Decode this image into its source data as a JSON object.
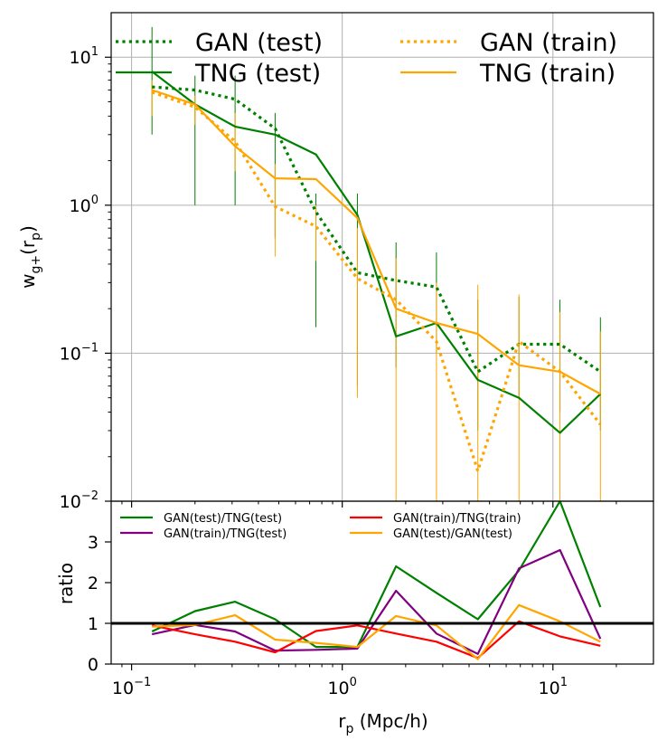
{
  "chart_data": [
    {
      "type": "line",
      "panel": "main",
      "ylabel_main": "w",
      "ylabel_sub": "g+",
      "ylabel_paren": "(r",
      "ylabel_p": "p",
      "ylabel_close": ")",
      "xscale": "log",
      "yscale": "log",
      "xlim": [
        0.08,
        30
      ],
      "ylim": [
        0.01,
        20
      ],
      "grid": true,
      "legend_position": "top, two columns",
      "yticks": [
        {
          "value": 0.01,
          "base": "10",
          "exp": "−2"
        },
        {
          "value": 0.1,
          "base": "10",
          "exp": "−1"
        },
        {
          "value": 1,
          "base": "10",
          "exp": "0"
        },
        {
          "value": 10,
          "base": "10",
          "exp": "1"
        }
      ],
      "x": [
        0.125,
        0.2,
        0.31,
        0.48,
        0.75,
        1.18,
        1.8,
        2.8,
        4.4,
        6.9,
        10.8,
        16.8
      ],
      "series": [
        {
          "name": "GAN (test)",
          "color": "#008000",
          "style": "dotted",
          "values": [
            6.3,
            6.0,
            5.2,
            3.3,
            0.9,
            0.35,
            0.31,
            0.28,
            0.075,
            0.115,
            0.115,
            0.075
          ],
          "err_lo": [
            3.0,
            1.0,
            1.0,
            0.6,
            0.15,
            0.06,
            0.08,
            0.1,
            0.03,
            0.05,
            0.04,
            0.03
          ],
          "err_hi": [
            16,
            7.5,
            7.5,
            4.2,
            1.2,
            1.2,
            0.56,
            0.48,
            0.23,
            0.24,
            0.23,
            0.175
          ]
        },
        {
          "name": "TNG (test)",
          "color": "#008000",
          "style": "solid",
          "values": [
            8.0,
            4.8,
            3.4,
            3.0,
            2.2,
            0.86,
            0.13,
            0.16,
            0.066,
            0.05,
            0.029,
            0.053
          ]
        },
        {
          "name": "GAN (train)",
          "color": "#ffa500",
          "style": "dotted",
          "values": [
            5.8,
            4.6,
            2.7,
            0.98,
            0.72,
            0.32,
            0.23,
            0.12,
            0.016,
            0.12,
            0.075,
            0.033
          ],
          "err_lo": [
            4.0,
            3.5,
            1.7,
            0.45,
            0.42,
            0.05,
            0.004,
            0.004,
            0.004,
            0.004,
            0.004,
            0.004
          ],
          "err_hi": [
            7.0,
            5.5,
            4.2,
            1.9,
            1.0,
            0.7,
            0.44,
            0.3,
            0.29,
            0.25,
            0.19,
            0.14
          ]
        },
        {
          "name": "TNG (train)",
          "color": "#ffa500",
          "style": "solid",
          "values": [
            6.0,
            4.8,
            2.5,
            1.52,
            1.5,
            0.82,
            0.2,
            0.16,
            0.135,
            0.083,
            0.075,
            0.053
          ]
        }
      ]
    },
    {
      "type": "line",
      "panel": "ratio",
      "xlabel_main": "r",
      "xlabel_p": "p",
      "xlabel_rest": " (Mpc/h)",
      "ylabel": "ratio",
      "xscale": "log",
      "xlim": [
        0.08,
        30
      ],
      "ylim": [
        0,
        4
      ],
      "xticks": [
        {
          "value": 0.1,
          "base": "10",
          "exp": "−1"
        },
        {
          "value": 1,
          "base": "10",
          "exp": "0"
        },
        {
          "value": 10,
          "base": "10",
          "exp": "1"
        }
      ],
      "yticks": [
        "0",
        "1",
        "2",
        "3"
      ],
      "reference_line": 1,
      "x": [
        0.125,
        0.2,
        0.31,
        0.48,
        0.75,
        1.18,
        1.8,
        2.8,
        4.4,
        6.9,
        10.8,
        16.8
      ],
      "series": [
        {
          "name": "GAN(test)/TNG(test)",
          "color": "#008000",
          "values": [
            0.8,
            1.3,
            1.53,
            1.1,
            0.42,
            0.42,
            2.4,
            1.75,
            1.1,
            2.3,
            4.0,
            1.4
          ]
        },
        {
          "name": "GAN(train)/TNG(test)",
          "color": "#800080",
          "values": [
            0.73,
            0.96,
            0.8,
            0.33,
            0.35,
            0.38,
            1.8,
            0.75,
            0.25,
            2.35,
            2.8,
            0.62
          ]
        },
        {
          "name": "GAN(train)/TNG(train)",
          "color": "#ff0000",
          "values": [
            0.95,
            0.73,
            0.55,
            0.29,
            0.81,
            0.95,
            0.75,
            0.55,
            0.15,
            1.05,
            0.68,
            0.45
          ]
        },
        {
          "name": "GAN(test)/GAN(test)",
          "color": "#ffa500",
          "values": [
            0.92,
            0.96,
            1.2,
            0.6,
            0.52,
            0.42,
            1.18,
            0.95,
            0.12,
            1.45,
            1.05,
            0.55
          ]
        }
      ]
    }
  ]
}
